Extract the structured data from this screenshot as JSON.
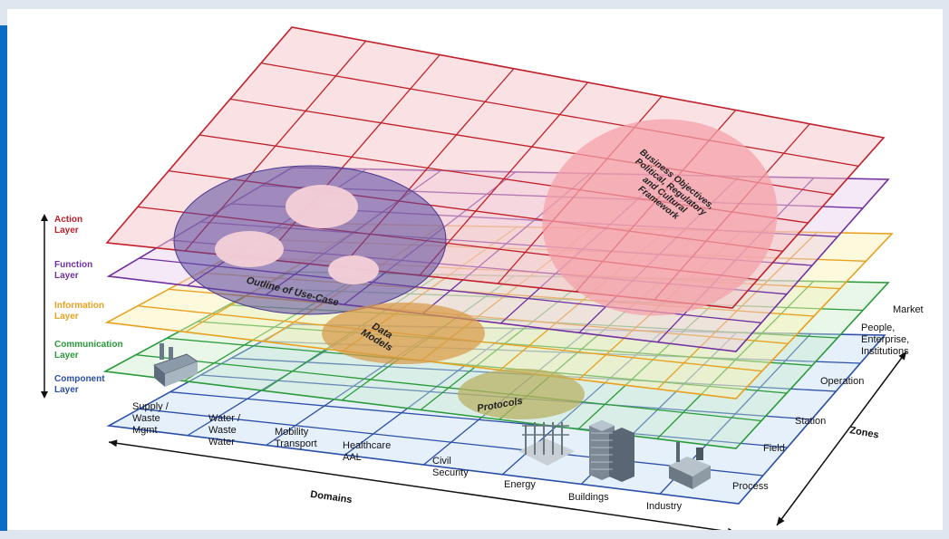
{
  "colors": {
    "action": "#c0202a",
    "function": "#7030a0",
    "information": "#e8a020",
    "communication": "#2a9a3a",
    "component": "#2b4fa8",
    "left_bar": "#0a6cc4"
  },
  "layers": [
    {
      "id": "action",
      "line1": "Action",
      "line2": "Layer"
    },
    {
      "id": "function",
      "line1": "Function",
      "line2": "Layer"
    },
    {
      "id": "information",
      "line1": "Information",
      "line2": "Layer"
    },
    {
      "id": "communication",
      "line1": "Communication",
      "line2": "Layer"
    },
    {
      "id": "component",
      "line1": "Component",
      "line2": "Layer"
    }
  ],
  "domains": {
    "title": "Domains",
    "items": [
      [
        "Supply /",
        "Waste",
        "Mgmt"
      ],
      [
        "Water /",
        "Waste",
        "Water"
      ],
      [
        "Mobility",
        "Transport"
      ],
      [
        "Healthcare",
        "AAL"
      ],
      [
        "Civil",
        "Security"
      ],
      [
        "Energy"
      ],
      [
        "Buildings"
      ],
      [
        "Industry"
      ]
    ]
  },
  "zones": {
    "title": "Zones",
    "items": [
      [
        "Process"
      ],
      [
        "Field"
      ],
      [
        "Station"
      ],
      [
        "Operation"
      ],
      [
        "People,",
        "Enterprise,",
        "Institutions"
      ],
      [
        "Market"
      ]
    ]
  },
  "overlays": {
    "use_case": "Outline of Use-Case",
    "business": [
      "Business Objectives,",
      "Political, Regulatory",
      "and Cultural",
      "Framework"
    ],
    "data_models": [
      "Data",
      "Models"
    ],
    "protocols": "Protocols"
  },
  "icons": [
    "factory-icon",
    "power-substation-icon",
    "office-buildings-icon",
    "industry-plant-icon"
  ]
}
